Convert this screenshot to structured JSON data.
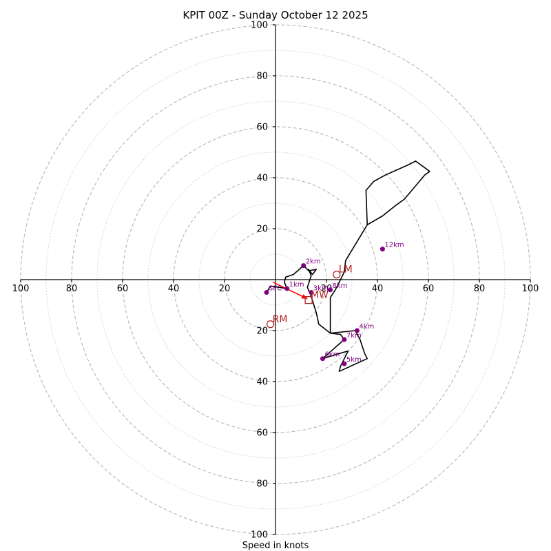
{
  "chart_data": {
    "type": "scatter",
    "title": "KPIT 00Z - Sunday October 12 2025",
    "xlabel": "Speed in knots",
    "ylabel": "",
    "xlim": [
      -100,
      100
    ],
    "ylim": [
      -100,
      100
    ],
    "ring_values_major": [
      20,
      40,
      60,
      80,
      100
    ],
    "ring_values_minor": [
      10,
      30,
      50,
      70,
      90
    ],
    "x_ticks": [
      "100",
      "80",
      "60",
      "40",
      "20",
      "20",
      "40",
      "60",
      "80",
      "100"
    ],
    "y_ticks": [
      "100",
      "80",
      "60",
      "40",
      "20",
      "20",
      "40",
      "60",
      "80",
      "100"
    ],
    "grid": true,
    "colors": {
      "trace": "#000000",
      "height_marker": "#800080",
      "storm_motion": "#b22222",
      "mean_wind_arrow": "#ff0000",
      "grid": "#bbbbbb"
    },
    "trace": [
      [
        -3.5,
        -5
      ],
      [
        -2,
        -2.5
      ],
      [
        4.5,
        -3.5
      ],
      [
        3.5,
        -1
      ],
      [
        4,
        1
      ],
      [
        7,
        2
      ],
      [
        11,
        5.5
      ],
      [
        13,
        3.5
      ],
      [
        16,
        4
      ],
      [
        14.5,
        2
      ],
      [
        13,
        4
      ],
      [
        14,
        1.5
      ],
      [
        12.5,
        -3
      ],
      [
        14,
        -6.5
      ],
      [
        16,
        -13
      ],
      [
        17,
        -17.5
      ],
      [
        21.5,
        -21
      ],
      [
        31.5,
        -20
      ],
      [
        32,
        -21.5
      ],
      [
        33,
        -23
      ],
      [
        35,
        -29
      ],
      [
        36,
        -31
      ],
      [
        25,
        -36
      ],
      [
        25.5,
        -34
      ],
      [
        28.5,
        -28
      ],
      [
        25,
        -29
      ],
      [
        18.5,
        -31
      ],
      [
        27,
        -23.5
      ],
      [
        25.5,
        -21.5
      ],
      [
        21.5,
        -21
      ],
      [
        21.5,
        -7
      ],
      [
        23.5,
        -4
      ],
      [
        25.5,
        0
      ],
      [
        27,
        3
      ],
      [
        27.5,
        7.5
      ],
      [
        36,
        21.5
      ],
      [
        42,
        25
      ],
      [
        47,
        29
      ],
      [
        50.5,
        31.5
      ],
      [
        56,
        38
      ],
      [
        58.5,
        41
      ],
      [
        60.5,
        42.5
      ],
      [
        55,
        46.5
      ],
      [
        52,
        45
      ],
      [
        43,
        41
      ],
      [
        38.5,
        38.5
      ],
      [
        35.5,
        35
      ],
      [
        36,
        21.5
      ]
    ],
    "height_markers": [
      {
        "label": "SFC",
        "x": -3.5,
        "y": -5
      },
      {
        "label": "1km",
        "x": 4.5,
        "y": -3.5
      },
      {
        "label": "2km",
        "x": 11,
        "y": 5.5
      },
      {
        "label": "3km",
        "x": 14,
        "y": -5
      },
      {
        "label": "4km",
        "x": 32,
        "y": -20
      },
      {
        "label": "5km",
        "x": 27,
        "y": -33
      },
      {
        "label": "6km",
        "x": 18.5,
        "y": -31
      },
      {
        "label": "7km",
        "x": 27,
        "y": -23.5
      },
      {
        "label": "8km",
        "x": 21.5,
        "y": -4
      },
      {
        "label": "12km",
        "x": 42,
        "y": 12
      }
    ],
    "storm_motions": [
      {
        "label": "LM",
        "x": 24,
        "y": 2,
        "shape": "circle"
      },
      {
        "label": "RM",
        "x": -2,
        "y": -17.5,
        "shape": "circle"
      },
      {
        "label": "MW",
        "x": 13,
        "y": -8,
        "shape": "square"
      }
    ],
    "mean_wind_arrow": {
      "from": [
        -1,
        -1
      ],
      "to": [
        12.5,
        -7.5
      ]
    }
  }
}
